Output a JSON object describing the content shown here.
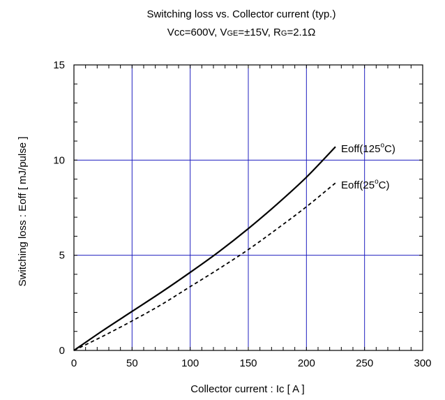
{
  "chart_data": {
    "type": "line",
    "title": "Switching loss vs. Collector current (typ.)",
    "subtitle": {
      "vcc": "Vcc=600V, ",
      "vge_v": "V",
      "vge_sub": "GE",
      "vge_val": "=±15V, ",
      "rg_r": "R",
      "rg_sub": "G",
      "rg_val": "=2.1Ω"
    },
    "xlabel": "Collector current : Ic [ A ]",
    "ylabel": "Switching loss : Eoff [ mJ/pulse ]",
    "xlim": [
      0,
      300
    ],
    "ylim": [
      0,
      15
    ],
    "x_ticks": [
      0,
      50,
      100,
      150,
      200,
      250,
      300
    ],
    "y_ticks": [
      0,
      5,
      10,
      15
    ],
    "grid": true,
    "grid_color": "#1f1fbf",
    "series": [
      {
        "name_main": "Eoff(125",
        "name_sup": "o",
        "name_tail": "C)",
        "style": "solid",
        "x": [
          0,
          25,
          50,
          75,
          100,
          125,
          150,
          175,
          200,
          225
        ],
        "y": [
          0,
          1.05,
          2.05,
          3.05,
          4.1,
          5.2,
          6.4,
          7.7,
          9.1,
          10.7
        ]
      },
      {
        "name_main": "Eoff(25",
        "name_sup": "o",
        "name_tail": "C)",
        "style": "dashed",
        "x": [
          0,
          25,
          50,
          75,
          100,
          125,
          150,
          175,
          200,
          225
        ],
        "y": [
          0,
          0.75,
          1.55,
          2.4,
          3.35,
          4.3,
          5.3,
          6.4,
          7.55,
          8.8
        ]
      }
    ]
  }
}
